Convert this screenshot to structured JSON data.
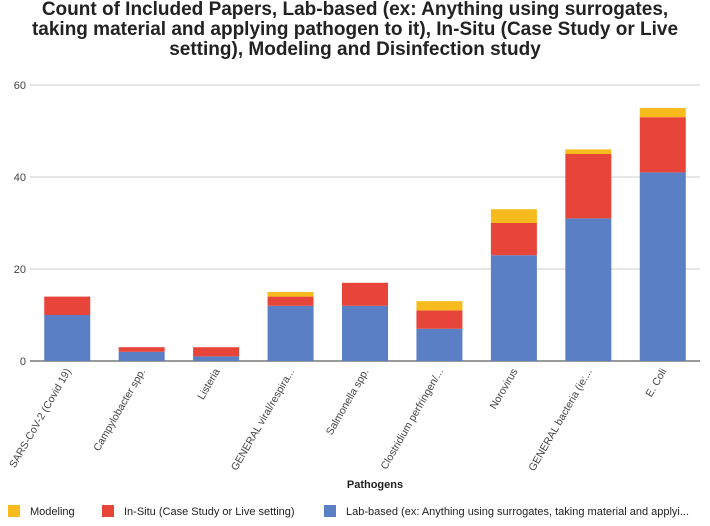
{
  "chart_data": {
    "type": "bar",
    "stacked": true,
    "title_lines": [
      "Count of Included Papers, Lab-based (ex: Anything using surrogates,",
      "taking material and applying pathogen to it), In-Situ (Case Study or Live",
      "setting), Modeling and Disinfection study"
    ],
    "xlabel": "Pathogens",
    "ylabel": "",
    "ylim": [
      0,
      60
    ],
    "yticks": [
      "0",
      "20",
      "40",
      "60"
    ],
    "grid": true,
    "legend_position": "bottom",
    "categories": [
      "SARS-CoV-2 (Covid 19)",
      "Campylobacter spp.",
      "Listeria",
      "GENERAL viral/respira...",
      "Salmonella spp.",
      "Clostridium perfringen/...",
      "Norovirus",
      "GENERAL bacteria (ie:...",
      "E. Coli"
    ],
    "series": [
      {
        "name": "Lab-based (ex: Anything using surrogates, taking material and applyi...",
        "color": "#5b7fc4",
        "values": [
          10,
          2,
          1,
          12,
          12,
          7,
          23,
          31,
          41
        ]
      },
      {
        "name": "In-Situ (Case Study or Live setting)",
        "color": "#e8453a",
        "values": [
          4,
          1,
          2,
          2,
          5,
          4,
          7,
          14,
          12
        ]
      },
      {
        "name": "Modeling",
        "color": "#f7bb1e",
        "values": [
          0,
          0,
          0,
          1,
          0,
          2,
          3,
          1,
          2
        ]
      }
    ],
    "legend_order": [
      2,
      1,
      0
    ]
  }
}
